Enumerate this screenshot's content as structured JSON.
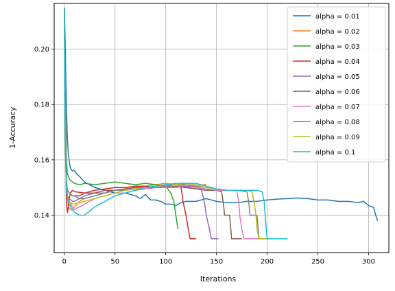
{
  "chart_data": {
    "type": "line",
    "xlabel": "Iterations",
    "ylabel": "1-Accuracy",
    "xlim": [
      -10,
      320
    ],
    "ylim": [
      0.1265,
      0.2165
    ],
    "xticks": [
      0,
      50,
      100,
      150,
      200,
      250,
      300
    ],
    "yticks": [
      0.14,
      0.16,
      0.18,
      0.2
    ],
    "ytick_labels": [
      "0.14",
      "0.16",
      "0.18",
      "0.20"
    ],
    "grid": true,
    "legend_position": "top-right",
    "series": [
      {
        "name": "alpha = 0.01",
        "color": "#1f77b4",
        "points": [
          [
            0,
            0.215
          ],
          [
            1,
            0.2
          ],
          [
            2,
            0.18
          ],
          [
            3,
            0.168
          ],
          [
            4,
            0.162
          ],
          [
            5,
            0.159
          ],
          [
            6,
            0.157
          ],
          [
            8,
            0.156
          ],
          [
            10,
            0.156
          ],
          [
            12,
            0.155
          ],
          [
            15,
            0.154
          ],
          [
            20,
            0.152
          ],
          [
            25,
            0.151
          ],
          [
            30,
            0.15
          ],
          [
            40,
            0.149
          ],
          [
            50,
            0.148
          ],
          [
            60,
            0.148
          ],
          [
            70,
            0.147
          ],
          [
            75,
            0.146
          ],
          [
            80,
            0.1475
          ],
          [
            85,
            0.1455
          ],
          [
            90,
            0.1455
          ],
          [
            95,
            0.145
          ],
          [
            100,
            0.144
          ],
          [
            105,
            0.144
          ],
          [
            110,
            0.1435
          ],
          [
            115,
            0.1445
          ],
          [
            120,
            0.145
          ],
          [
            130,
            0.145
          ],
          [
            140,
            0.146
          ],
          [
            150,
            0.145
          ],
          [
            160,
            0.1445
          ],
          [
            170,
            0.1445
          ],
          [
            180,
            0.145
          ],
          [
            190,
            0.145
          ],
          [
            200,
            0.1455
          ],
          [
            210,
            0.1458
          ],
          [
            220,
            0.146
          ],
          [
            230,
            0.1462
          ],
          [
            240,
            0.146
          ],
          [
            250,
            0.1455
          ],
          [
            260,
            0.1455
          ],
          [
            270,
            0.145
          ],
          [
            280,
            0.145
          ],
          [
            290,
            0.1445
          ],
          [
            295,
            0.145
          ],
          [
            300,
            0.1435
          ],
          [
            305,
            0.1428
          ],
          [
            307,
            0.14
          ],
          [
            309,
            0.138
          ]
        ]
      },
      {
        "name": "alpha = 0.02",
        "color": "#ff7f0e",
        "points": [
          [
            0,
            0.215
          ],
          [
            1,
            0.18
          ],
          [
            2,
            0.155
          ],
          [
            3,
            0.147
          ],
          [
            4,
            0.143
          ],
          [
            6,
            0.142
          ],
          [
            8,
            0.142
          ],
          [
            10,
            0.143
          ],
          [
            15,
            0.145
          ],
          [
            20,
            0.146
          ],
          [
            30,
            0.147
          ],
          [
            40,
            0.148
          ],
          [
            50,
            0.149
          ],
          [
            60,
            0.1495
          ],
          [
            70,
            0.15
          ],
          [
            80,
            0.1505
          ],
          [
            90,
            0.151
          ],
          [
            100,
            0.1515
          ],
          [
            110,
            0.151
          ],
          [
            120,
            0.15
          ],
          [
            130,
            0.1505
          ],
          [
            135,
            0.151
          ],
          [
            140,
            0.151
          ]
        ]
      },
      {
        "name": "alpha = 0.03",
        "color": "#2ca02c",
        "points": [
          [
            0,
            0.215
          ],
          [
            1,
            0.18
          ],
          [
            2,
            0.16
          ],
          [
            3,
            0.155
          ],
          [
            5,
            0.153
          ],
          [
            8,
            0.152
          ],
          [
            10,
            0.1515
          ],
          [
            15,
            0.151
          ],
          [
            20,
            0.1515
          ],
          [
            30,
            0.151
          ],
          [
            40,
            0.1515
          ],
          [
            50,
            0.152
          ],
          [
            60,
            0.1515
          ],
          [
            70,
            0.151
          ],
          [
            80,
            0.1515
          ],
          [
            90,
            0.151
          ],
          [
            100,
            0.1505
          ],
          [
            105,
            0.148
          ],
          [
            108,
            0.145
          ],
          [
            110,
            0.14
          ],
          [
            112,
            0.135
          ]
        ]
      },
      {
        "name": "alpha = 0.04",
        "color": "#d62728",
        "points": [
          [
            0,
            0.215
          ],
          [
            1,
            0.175
          ],
          [
            2,
            0.145
          ],
          [
            3,
            0.141
          ],
          [
            4,
            0.143
          ],
          [
            5,
            0.146
          ],
          [
            6,
            0.148
          ],
          [
            8,
            0.149
          ],
          [
            10,
            0.1485
          ],
          [
            20,
            0.148
          ],
          [
            30,
            0.149
          ],
          [
            40,
            0.1495
          ],
          [
            50,
            0.15
          ],
          [
            60,
            0.15
          ],
          [
            70,
            0.1505
          ],
          [
            80,
            0.1505
          ],
          [
            90,
            0.15
          ],
          [
            100,
            0.1505
          ],
          [
            110,
            0.15
          ],
          [
            115,
            0.1505
          ],
          [
            117,
            0.145
          ],
          [
            120,
            0.14
          ],
          [
            122,
            0.1355
          ],
          [
            124,
            0.1315
          ],
          [
            130,
            0.1315
          ]
        ]
      },
      {
        "name": "alpha = 0.05",
        "color": "#9467bd",
        "points": [
          [
            0,
            0.215
          ],
          [
            1,
            0.17
          ],
          [
            2,
            0.15
          ],
          [
            3,
            0.147
          ],
          [
            5,
            0.146
          ],
          [
            8,
            0.145
          ],
          [
            10,
            0.145
          ],
          [
            15,
            0.146
          ],
          [
            20,
            0.147
          ],
          [
            30,
            0.148
          ],
          [
            40,
            0.148
          ],
          [
            50,
            0.149
          ],
          [
            60,
            0.149
          ],
          [
            70,
            0.1495
          ],
          [
            80,
            0.15
          ],
          [
            90,
            0.15
          ],
          [
            100,
            0.1505
          ],
          [
            110,
            0.15
          ],
          [
            120,
            0.1505
          ],
          [
            130,
            0.15
          ],
          [
            135,
            0.1495
          ],
          [
            138,
            0.145
          ],
          [
            140,
            0.14
          ],
          [
            143,
            0.135
          ],
          [
            145,
            0.1315
          ],
          [
            152,
            0.1315
          ]
        ]
      },
      {
        "name": "alpha = 0.06",
        "color": "#8c564b",
        "points": [
          [
            0,
            0.215
          ],
          [
            1,
            0.17
          ],
          [
            2,
            0.152
          ],
          [
            3,
            0.149
          ],
          [
            5,
            0.148
          ],
          [
            8,
            0.147
          ],
          [
            10,
            0.147
          ],
          [
            15,
            0.147
          ],
          [
            20,
            0.148
          ],
          [
            30,
            0.148
          ],
          [
            40,
            0.149
          ],
          [
            50,
            0.149
          ],
          [
            60,
            0.1495
          ],
          [
            70,
            0.15
          ],
          [
            80,
            0.15
          ],
          [
            90,
            0.15
          ],
          [
            100,
            0.15
          ],
          [
            110,
            0.1505
          ],
          [
            120,
            0.15
          ],
          [
            130,
            0.1495
          ],
          [
            140,
            0.149
          ],
          [
            150,
            0.149
          ],
          [
            155,
            0.1485
          ],
          [
            157,
            0.144
          ],
          [
            158,
            0.14
          ],
          [
            163,
            0.14
          ],
          [
            165,
            0.1315
          ],
          [
            175,
            0.1315
          ]
        ]
      },
      {
        "name": "alpha = 0.07",
        "color": "#e377c2",
        "points": [
          [
            0,
            0.215
          ],
          [
            1,
            0.165
          ],
          [
            2,
            0.15
          ],
          [
            3,
            0.147
          ],
          [
            5,
            0.145
          ],
          [
            8,
            0.143
          ],
          [
            10,
            0.142
          ],
          [
            12,
            0.1425
          ],
          [
            15,
            0.143
          ],
          [
            20,
            0.144
          ],
          [
            30,
            0.146
          ],
          [
            40,
            0.147
          ],
          [
            50,
            0.148
          ],
          [
            60,
            0.148
          ],
          [
            70,
            0.149
          ],
          [
            80,
            0.1495
          ],
          [
            90,
            0.15
          ],
          [
            100,
            0.15
          ],
          [
            110,
            0.15
          ],
          [
            120,
            0.151
          ],
          [
            130,
            0.15
          ],
          [
            140,
            0.1495
          ],
          [
            150,
            0.149
          ],
          [
            160,
            0.149
          ],
          [
            170,
            0.149
          ],
          [
            172,
            0.145
          ],
          [
            173,
            0.14
          ],
          [
            175,
            0.135
          ],
          [
            177,
            0.1315
          ],
          [
            195,
            0.1315
          ]
        ]
      },
      {
        "name": "alpha = 0.08",
        "color": "#7f7f7f",
        "points": [
          [
            0,
            0.215
          ],
          [
            1,
            0.165
          ],
          [
            2,
            0.152
          ],
          [
            3,
            0.149
          ],
          [
            5,
            0.148
          ],
          [
            8,
            0.147
          ],
          [
            10,
            0.147
          ],
          [
            15,
            0.146
          ],
          [
            20,
            0.146
          ],
          [
            30,
            0.147
          ],
          [
            40,
            0.148
          ],
          [
            50,
            0.149
          ],
          [
            60,
            0.149
          ],
          [
            70,
            0.1495
          ],
          [
            80,
            0.15
          ],
          [
            90,
            0.15
          ],
          [
            100,
            0.1505
          ],
          [
            110,
            0.151
          ],
          [
            120,
            0.151
          ],
          [
            130,
            0.1505
          ],
          [
            140,
            0.15
          ],
          [
            150,
            0.1495
          ],
          [
            160,
            0.149
          ],
          [
            170,
            0.149
          ],
          [
            180,
            0.1485
          ],
          [
            182,
            0.1445
          ],
          [
            183,
            0.14
          ],
          [
            190,
            0.14
          ],
          [
            192,
            0.1315
          ],
          [
            200,
            0.1315
          ]
        ]
      },
      {
        "name": "alpha = 0.09",
        "color": "#bcbd22",
        "points": [
          [
            0,
            0.215
          ],
          [
            1,
            0.165
          ],
          [
            2,
            0.15
          ],
          [
            3,
            0.147
          ],
          [
            5,
            0.145
          ],
          [
            8,
            0.144
          ],
          [
            10,
            0.144
          ],
          [
            15,
            0.1445
          ],
          [
            20,
            0.145
          ],
          [
            30,
            0.146
          ],
          [
            40,
            0.147
          ],
          [
            50,
            0.148
          ],
          [
            60,
            0.149
          ],
          [
            70,
            0.1495
          ],
          [
            80,
            0.15
          ],
          [
            90,
            0.1505
          ],
          [
            100,
            0.151
          ],
          [
            110,
            0.151
          ],
          [
            120,
            0.1515
          ],
          [
            130,
            0.151
          ],
          [
            140,
            0.15
          ],
          [
            150,
            0.1495
          ],
          [
            160,
            0.149
          ],
          [
            170,
            0.149
          ],
          [
            180,
            0.149
          ],
          [
            185,
            0.1485
          ],
          [
            187,
            0.145
          ],
          [
            189,
            0.14
          ],
          [
            190,
            0.135
          ],
          [
            192,
            0.1315
          ],
          [
            202,
            0.1315
          ]
        ]
      },
      {
        "name": "alpha = 0.1",
        "color": "#17becf",
        "points": [
          [
            0,
            0.215
          ],
          [
            1,
            0.165
          ],
          [
            2,
            0.15
          ],
          [
            3,
            0.146
          ],
          [
            5,
            0.144
          ],
          [
            8,
            0.142
          ],
          [
            10,
            0.141
          ],
          [
            15,
            0.14
          ],
          [
            20,
            0.14
          ],
          [
            25,
            0.1415
          ],
          [
            30,
            0.143
          ],
          [
            40,
            0.145
          ],
          [
            50,
            0.147
          ],
          [
            60,
            0.148
          ],
          [
            70,
            0.149
          ],
          [
            80,
            0.15
          ],
          [
            90,
            0.1505
          ],
          [
            100,
            0.151
          ],
          [
            110,
            0.1515
          ],
          [
            120,
            0.1515
          ],
          [
            130,
            0.1515
          ],
          [
            140,
            0.1505
          ],
          [
            150,
            0.1495
          ],
          [
            160,
            0.149
          ],
          [
            170,
            0.149
          ],
          [
            180,
            0.149
          ],
          [
            190,
            0.149
          ],
          [
            195,
            0.1485
          ],
          [
            197,
            0.145
          ],
          [
            198,
            0.14
          ],
          [
            200,
            0.1315
          ],
          [
            220,
            0.1315
          ]
        ]
      }
    ]
  }
}
